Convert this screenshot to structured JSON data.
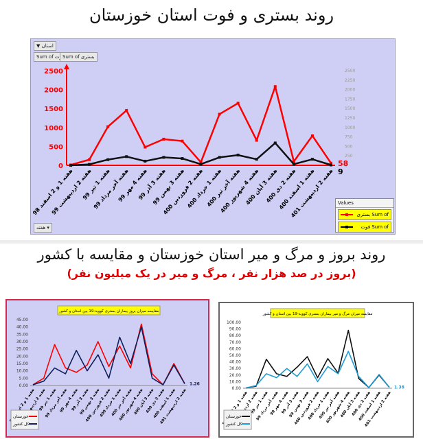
{
  "main_title": "روند بستری و فوت استان خوزستان",
  "bottom_title": "روند بروز و مرگ و میر استان خوزستان و مقایسه با کشور",
  "bottom_subtitle": "(بروز در صد هزار نفر ، مرگ و میر در یک میلیون نفر)",
  "pivot_controls": {
    "filter_label": "استان",
    "sum_deaths_tab": "Sum of فوت",
    "sum_hosp_tab": "Sum of بستری",
    "bottom_field": "هفته",
    "values_header": "Values",
    "legend_hosp": "Sum of بستری",
    "legend_deaths": "Sum of فوت"
  },
  "colors": {
    "hospitalized": "#ff0000",
    "deaths": "#111111",
    "khuzestan_blue": "#1f9bd6",
    "country_navy": "#0f1f5c",
    "accent_red": "#e00000",
    "legend_yellow": "#ffff00"
  },
  "chart_data": [
    {
      "type": "line",
      "title": "",
      "categories": [
        "هفته 1 و 2 اسفند 98",
        "هفته 2 اردیبهشت 99",
        "هفته 1 تیر 99",
        "هفته آخر مرداد 99",
        "هفته 4 مهر 99",
        "هفته 3 آذر 99",
        "هفته 3 بهمن 99",
        "هفته 2 فروردین 400",
        "هفته 1 خرداد 400",
        "هفته آخر تیر 400",
        "هفته 4 شهریور 400",
        "هفته 3 آبان 400",
        "هفته 2 دی 400",
        "هفته 1 اسفند 400",
        "هفته 2 اردیبهشت 401"
      ],
      "series": [
        {
          "name": "Sum of بستری",
          "axis": "left",
          "values": [
            10,
            150,
            1020,
            1450,
            480,
            690,
            640,
            80,
            1350,
            1640,
            660,
            2080,
            100,
            780,
            58
          ]
        },
        {
          "name": "Sum of فوت",
          "axis": "right",
          "values": [
            0,
            25,
            150,
            230,
            110,
            210,
            180,
            30,
            210,
            270,
            160,
            590,
            30,
            160,
            9
          ]
        }
      ],
      "left_ylim": [
        0,
        2500
      ],
      "right_ylim": [
        0,
        2500
      ],
      "left_ticks": [
        0,
        500,
        1000,
        1500,
        2000,
        2500
      ],
      "right_ticks": [
        0,
        250,
        500,
        750,
        1000,
        1250,
        1500,
        1750,
        2000,
        2250,
        2500
      ],
      "end_labels": [
        "58",
        "9"
      ],
      "grid": false,
      "legend_position": "bottom-right"
    },
    {
      "type": "line",
      "title": "مقایسه میزان بروز بیماران بستری کووید-19 بین استان و کشور",
      "categories": [
        "هفته 1 و 2 اسفند 98",
        "هفته 2 اردیبهشت 99",
        "هفته 1 تیر 99",
        "هفته آخر مرداد 99",
        "هفته 4 مهر 99",
        "هفته 3 آذر 99",
        "هفته 3 بهمن 99",
        "هفته 2 فروردین 400",
        "هفته 1 خرداد 400",
        "هفته آخر تیر 400",
        "هفته 4 شهریور 400",
        "هفته 3 آبان 400",
        "هفته 2 دی 400",
        "هفته 1 اسفند 400",
        "هفته 2 اردیبهشت 401"
      ],
      "series": [
        {
          "name": "خوزستان",
          "values": [
            0.5,
            5,
            28,
            12,
            9,
            14,
            30,
            13,
            27,
            12,
            42,
            8,
            0.5,
            15,
            1.26
          ]
        },
        {
          "name": "کل کشور",
          "values": [
            0.5,
            3,
            12,
            8,
            24,
            10,
            21,
            5,
            33,
            15,
            40,
            5,
            0.5,
            14,
            1.2
          ]
        }
      ],
      "ylim": [
        0,
        45
      ],
      "ticks": [
        0,
        5,
        10,
        15,
        20,
        25,
        30,
        35,
        40,
        45
      ],
      "tick_labels": [
        "0.00",
        "5.00",
        "10.00",
        "15.00",
        "20.00",
        "25.00",
        "30.00",
        "35.00",
        "40.00",
        "45.00"
      ],
      "end_label": "1.26",
      "legend_position": "bottom-left"
    },
    {
      "type": "line",
      "title": "مقایسه میزان مرگ و میر بیماران بستری کووید-19 بین استان و کشور",
      "categories": [
        "هفته 1 و 2 اسفند 98",
        "هفته 2 اردیبهشت 99",
        "هفته 1 تیر 99",
        "هفته آخر مرداد 99",
        "هفته 4 مهر 99",
        "هفته 3 آذر 99",
        "هفته 3 بهمن 99",
        "هفته 2 فروردین 400",
        "هفته 1 خرداد 400",
        "هفته آخر تیر 400",
        "هفته 4 شهریور 400",
        "هفته 3 آبان 400",
        "هفته 2 دی 400",
        "هفته 1 اسفند 400",
        "هفته 2 اردیبهشت 401"
      ],
      "series": [
        {
          "name": "خوزستان",
          "values": [
            0.5,
            3,
            44,
            22,
            18,
            32,
            48,
            16,
            45,
            23,
            88,
            15,
            1,
            20,
            1.38
          ]
        },
        {
          "name": "کل کشور",
          "values": [
            0.5,
            4,
            22,
            16,
            30,
            18,
            37,
            10,
            33,
            22,
            56,
            18,
            1,
            21,
            1.3
          ]
        }
      ],
      "ylim": [
        0,
        100
      ],
      "ticks": [
        0,
        10,
        20,
        30,
        40,
        50,
        60,
        70,
        80,
        90,
        100
      ],
      "tick_labels": [
        "0.00",
        "10.00",
        "20.00",
        "30.00",
        "40.00",
        "50.00",
        "60.00",
        "70.00",
        "80.00",
        "90.00",
        "100.00"
      ],
      "end_label": "1.38",
      "legend_position": "bottom-left"
    }
  ]
}
